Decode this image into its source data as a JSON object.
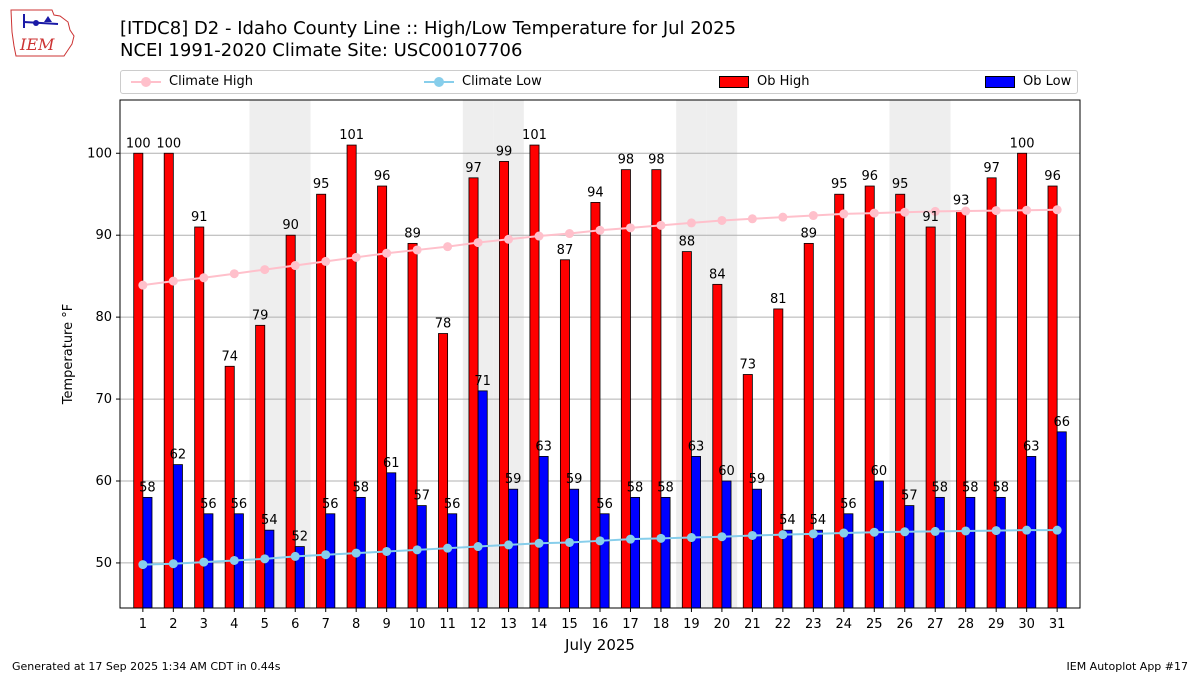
{
  "header": {
    "title_line1": "[ITDC8] D2 - Idaho County Line  :: High/Low Temperature for Jul 2025",
    "title_line2": "NCEI 1991-2020 Climate Site: USC00107706",
    "logo_text": "IEM"
  },
  "legend": {
    "climate_high": "Climate High",
    "climate_low": "Climate Low",
    "ob_high": "Ob High",
    "ob_low": "Ob Low"
  },
  "footer": {
    "left": "Generated at 17 Sep 2025 1:34 AM CDT in 0.44s",
    "right": "IEM Autoplot App #17"
  },
  "colors": {
    "ob_high": "#ff0000",
    "ob_low": "#0000ff",
    "climate_high": "#ffc0cb",
    "climate_low": "#87ceeb",
    "weekend_shade": "#eeeeee"
  },
  "chart_data": {
    "type": "bar",
    "xlabel": "July 2025",
    "ylabel": "Temperature °F",
    "ylim": [
      44.5,
      106.5
    ],
    "yticks": [
      50,
      60,
      70,
      80,
      90,
      100
    ],
    "categories": [
      "1",
      "2",
      "3",
      "4",
      "5",
      "6",
      "7",
      "8",
      "9",
      "10",
      "11",
      "12",
      "13",
      "14",
      "15",
      "16",
      "17",
      "18",
      "19",
      "20",
      "21",
      "22",
      "23",
      "24",
      "25",
      "26",
      "27",
      "28",
      "29",
      "30",
      "31"
    ],
    "shaded_days": [
      5,
      6,
      12,
      13,
      19,
      20,
      26,
      27
    ],
    "series": [
      {
        "name": "Ob High",
        "kind": "bar",
        "values": [
          100,
          100,
          91,
          74,
          79,
          90,
          95,
          101,
          96,
          89,
          78,
          97,
          99,
          101,
          87,
          94,
          98,
          98,
          88,
          84,
          73,
          81,
          89,
          95,
          96,
          95,
          91,
          93,
          97,
          100,
          96
        ]
      },
      {
        "name": "Ob Low",
        "kind": "bar",
        "values": [
          58,
          62,
          56,
          56,
          54,
          52,
          56,
          58,
          61,
          57,
          56,
          71,
          59,
          63,
          59,
          56,
          58,
          58,
          63,
          60,
          59,
          54,
          54,
          56,
          60,
          57,
          58,
          58,
          58,
          63,
          66
        ]
      },
      {
        "name": "Climate High",
        "kind": "line",
        "values": [
          83.9,
          84.4,
          84.8,
          85.3,
          85.8,
          86.3,
          86.8,
          87.3,
          87.8,
          88.2,
          88.6,
          89.1,
          89.5,
          89.9,
          90.2,
          90.6,
          90.9,
          91.2,
          91.5,
          91.8,
          92.0,
          92.2,
          92.4,
          92.6,
          92.7,
          92.8,
          92.9,
          92.95,
          93.0,
          93.05,
          93.1
        ]
      },
      {
        "name": "Climate Low",
        "kind": "line",
        "values": [
          49.8,
          49.9,
          50.1,
          50.3,
          50.5,
          50.8,
          51.0,
          51.2,
          51.4,
          51.6,
          51.8,
          52.0,
          52.2,
          52.4,
          52.5,
          52.7,
          52.9,
          53.0,
          53.1,
          53.2,
          53.35,
          53.45,
          53.55,
          53.65,
          53.75,
          53.8,
          53.85,
          53.9,
          53.95,
          54.0,
          54.0
        ]
      }
    ]
  }
}
